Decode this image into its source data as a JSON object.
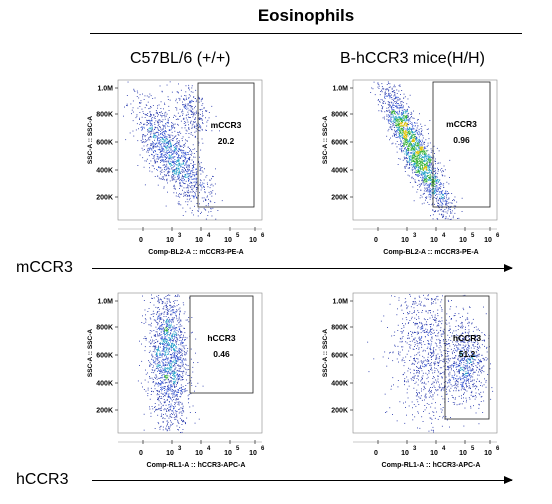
{
  "title": "Eosinophils",
  "column_headers": [
    "C57BL/6 (+/+)",
    "B-hCCR3 mice(H/H)"
  ],
  "row_labels": [
    "mCCR3",
    "hCCR3"
  ],
  "chart_data": [
    {
      "type": "scatter",
      "panel": "top-left",
      "xlabel": "Comp-BL2-A :: mCCR3-PE-A",
      "ylabel": "SSC-A :: SSC-A",
      "x_tick_labels": [
        {
          "b": "0",
          "e": ""
        },
        {
          "b": "10",
          "e": "3"
        },
        {
          "b": "10",
          "e": "4"
        },
        {
          "b": "10",
          "e": "5"
        },
        {
          "b": "10",
          "e": "6"
        }
      ],
      "y_tick_labels": [
        "1.0M",
        "800K",
        "600K",
        "400K",
        "200K"
      ],
      "gate": {
        "name": "mCCR3",
        "value": "20.2"
      }
    },
    {
      "type": "scatter",
      "panel": "top-right",
      "xlabel": "Comp-BL2-A :: mCCR3-PE-A",
      "ylabel": "SSC-A :: SSC-A",
      "x_tick_labels": [
        {
          "b": "0",
          "e": ""
        },
        {
          "b": "10",
          "e": "3"
        },
        {
          "b": "10",
          "e": "4"
        },
        {
          "b": "10",
          "e": "5"
        },
        {
          "b": "10",
          "e": "6"
        }
      ],
      "y_tick_labels": [
        "1.0M",
        "800K",
        "600K",
        "400K",
        "200K"
      ],
      "gate": {
        "name": "mCCR3",
        "value": "0.96"
      }
    },
    {
      "type": "scatter",
      "panel": "bottom-left",
      "xlabel": "Comp-RL1-A :: hCCR3-APC-A",
      "ylabel": "SSC-A :: SSC-A",
      "x_tick_labels": [
        {
          "b": "0",
          "e": ""
        },
        {
          "b": "10",
          "e": "3"
        },
        {
          "b": "10",
          "e": "4"
        },
        {
          "b": "10",
          "e": "5"
        },
        {
          "b": "10",
          "e": "6"
        }
      ],
      "y_tick_labels": [
        "1.0M",
        "800K",
        "600K",
        "400K",
        "200K"
      ],
      "gate": {
        "name": "hCCR3",
        "value": "0.46"
      }
    },
    {
      "type": "scatter",
      "panel": "bottom-right",
      "xlabel": "Comp-RL1-A :: hCCR3-APC-A",
      "ylabel": "SSC-A :: SSC-A",
      "x_tick_labels": [
        {
          "b": "0",
          "e": ""
        },
        {
          "b": "10",
          "e": "3"
        },
        {
          "b": "10",
          "e": "4"
        },
        {
          "b": "10",
          "e": "5"
        },
        {
          "b": "10",
          "e": "6"
        }
      ],
      "y_tick_labels": [
        "1.0M",
        "800K",
        "600K",
        "400K",
        "200K"
      ],
      "gate": {
        "name": "hCCR3",
        "value": "51.2"
      }
    }
  ]
}
